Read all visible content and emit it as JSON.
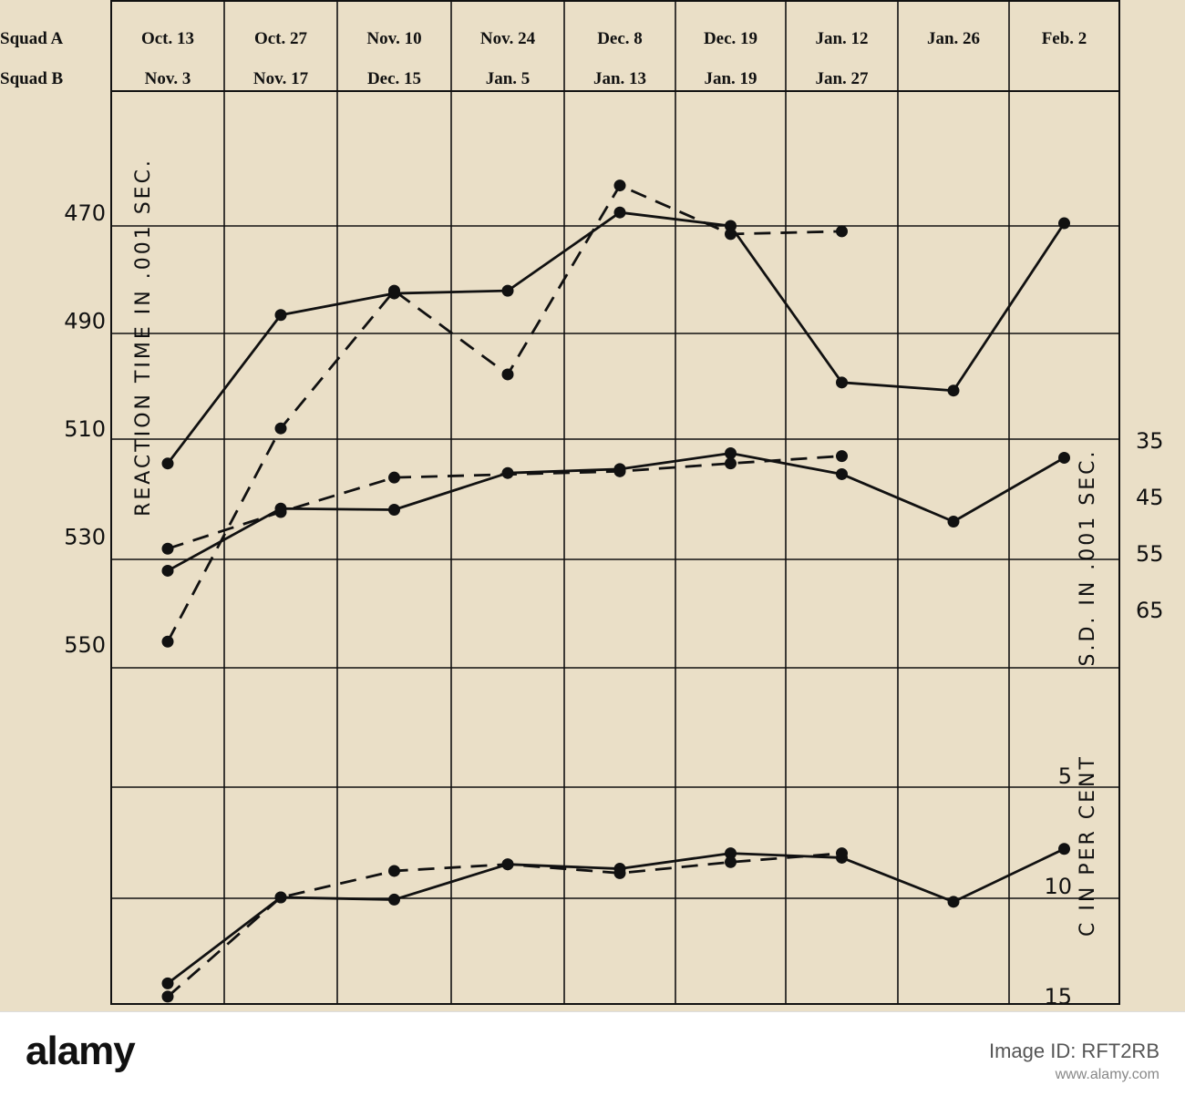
{
  "chart_data": {
    "type": "line",
    "row_labels": [
      "Squad A",
      "Squad B"
    ],
    "columns": [
      {
        "a": "Oct. 13",
        "b": "Nov. 3"
      },
      {
        "a": "Oct. 27",
        "b": "Nov. 17"
      },
      {
        "a": "Nov. 10",
        "b": "Dec. 15"
      },
      {
        "a": "Nov. 24",
        "b": "Jan. 5"
      },
      {
        "a": "Dec. 8",
        "b": "Jan. 13"
      },
      {
        "a": "Dec. 19",
        "b": "Jan. 19"
      },
      {
        "a": "Jan. 12",
        "b": "Jan. 27"
      },
      {
        "a": "Jan. 26",
        "b": ""
      },
      {
        "a": "Feb. 2",
        "b": ""
      }
    ],
    "left_axis": {
      "title": "REACTION TIME IN .001 SEC.",
      "ticks": [
        470,
        490,
        510,
        530,
        550
      ],
      "inverted": true
    },
    "right_axes": [
      {
        "title": "S.D. IN .001 SEC.",
        "ticks": [
          35,
          45,
          55,
          65
        ]
      },
      {
        "title": "C IN PER CENT",
        "ticks": [
          5,
          10,
          15
        ]
      }
    ],
    "series": [
      {
        "group": "reaction-time",
        "style": "solid",
        "axis": "left",
        "values": [
          514,
          486.5,
          482.5,
          482,
          467.5,
          470,
          499,
          500.5,
          469.5
        ]
      },
      {
        "group": "reaction-time",
        "style": "dashed",
        "axis": "left",
        "values": [
          547,
          507.5,
          482,
          497.5,
          462.5,
          471.5,
          471,
          null,
          null
        ]
      },
      {
        "group": "sd",
        "style": "solid",
        "axis": "right-sd",
        "values": [
          58.3,
          47.3,
          47.5,
          41.0,
          40.3,
          37.5,
          41.2,
          49.6,
          38.3
        ]
      },
      {
        "group": "sd",
        "style": "dashed",
        "axis": "right-sd",
        "values": [
          54.4,
          47.9,
          41.8,
          null,
          40.7,
          39.3,
          38.0,
          null,
          null
        ]
      },
      {
        "group": "c-percent",
        "style": "solid",
        "axis": "right-c",
        "values": [
          13.9,
          10.0,
          10.1,
          8.5,
          8.7,
          8.0,
          8.2,
          10.2,
          7.8
        ]
      },
      {
        "group": "c-percent",
        "style": "dashed",
        "axis": "right-c",
        "values": [
          14.5,
          10.0,
          8.8,
          8.5,
          8.9,
          8.4,
          8.0,
          null,
          null
        ]
      }
    ]
  },
  "footer": {
    "brand": "alamy",
    "image_id_label": "Image ID: RFT2RB",
    "site": "www.alamy.com"
  },
  "colors": {
    "paper": "#eadfc7",
    "ink": "#111111",
    "footer_bg": "#ffffff"
  }
}
